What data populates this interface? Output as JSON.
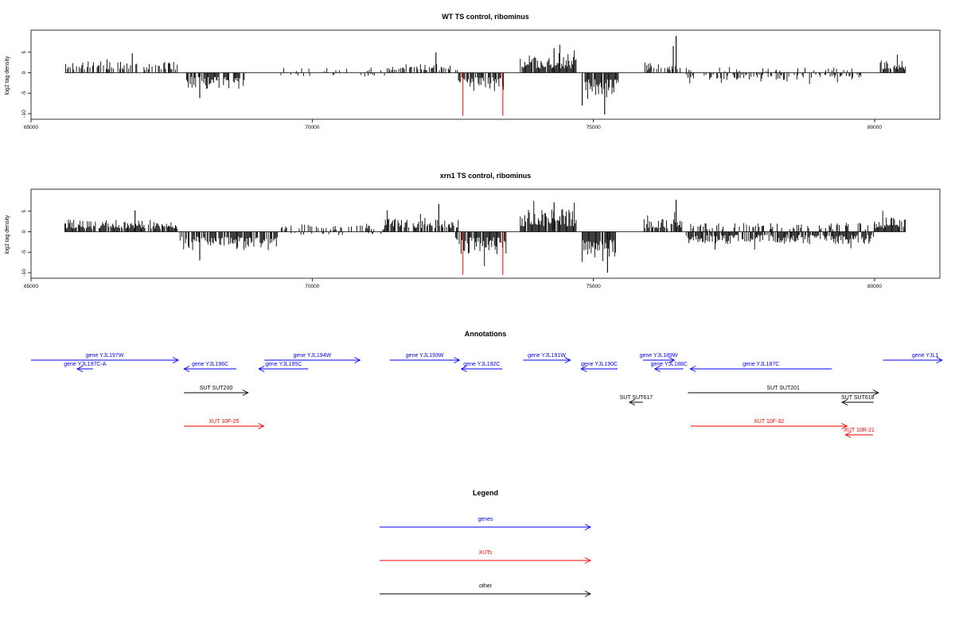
{
  "colors": {
    "genes": "#0000ff",
    "xuts": "#ff0000",
    "other": "#000000",
    "highlight": "#ff0000"
  },
  "chart_data": [
    {
      "type": "bar",
      "title": "WT TS control, ribominus",
      "ylabel": "log2 tag density",
      "xlim": [
        65000,
        81000
      ],
      "ylim": [
        -10.5,
        10
      ],
      "xticks": [
        65000,
        70000,
        75000,
        80000
      ],
      "yticks": [
        -10,
        -5,
        0,
        5
      ],
      "bar_style": "vertical bars from zero",
      "coverage_start": 65600,
      "coverage_end": 80550,
      "segments": [
        {
          "start": 65600,
          "end": 67600,
          "strand": 1,
          "amp": 2.8,
          "density": 0.55
        },
        {
          "start": 67750,
          "end": 68800,
          "strand": -1,
          "amp": 4.0,
          "density": 0.75
        },
        {
          "start": 69300,
          "end": 71300,
          "strand": 1,
          "amp": 1.4,
          "density": 0.12
        },
        {
          "start": 69300,
          "end": 71300,
          "strand": -1,
          "amp": 1.0,
          "density": 0.08
        },
        {
          "start": 71300,
          "end": 72600,
          "strand": 1,
          "amp": 2.2,
          "density": 0.45
        },
        {
          "start": 72600,
          "end": 73400,
          "strand": -1,
          "amp": 4.5,
          "density": 0.75
        },
        {
          "start": 73700,
          "end": 74700,
          "strand": 1,
          "amp": 4.3,
          "density": 0.9
        },
        {
          "start": 74850,
          "end": 75450,
          "strand": -1,
          "amp": 6.5,
          "density": 0.9
        },
        {
          "start": 75900,
          "end": 76600,
          "strand": 1,
          "amp": 2.6,
          "density": 0.55
        },
        {
          "start": 76650,
          "end": 79800,
          "strand": -1,
          "amp": 1.8,
          "density": 0.4
        },
        {
          "start": 76650,
          "end": 79800,
          "strand": 1,
          "amp": 1.4,
          "density": 0.12
        },
        {
          "start": 80100,
          "end": 80550,
          "strand": 1,
          "amp": 3.0,
          "density": 0.8
        }
      ],
      "peaks": [
        {
          "x": 76470,
          "y": 9.0
        },
        {
          "x": 76420,
          "y": 6.5
        },
        {
          "x": 75200,
          "y": -10.2
        },
        {
          "x": 74800,
          "y": -8.0
        },
        {
          "x": 68000,
          "y": -6.2
        },
        {
          "x": 66800,
          "y": 4.7
        },
        {
          "x": 72200,
          "y": 5.0
        },
        {
          "x": 74300,
          "y": 6.0
        }
      ],
      "highlight_bars": [
        {
          "x": 72680,
          "y": -10.5
        },
        {
          "x": 73390,
          "y": -10.5
        }
      ]
    },
    {
      "type": "bar",
      "title": "xrn1 TS control, ribominus",
      "ylabel": "log2 tag density",
      "xlim": [
        65000,
        81000
      ],
      "ylim": [
        -10.5,
        10
      ],
      "xticks": [
        65000,
        70000,
        75000,
        80000
      ],
      "yticks": [
        -10,
        -5,
        0,
        5
      ],
      "bar_style": "vertical bars from zero",
      "coverage_start": 65600,
      "coverage_end": 80550,
      "segments": [
        {
          "start": 65600,
          "end": 67600,
          "strand": 1,
          "amp": 3.0,
          "density": 0.85
        },
        {
          "start": 67650,
          "end": 69400,
          "strand": -1,
          "amp": 4.5,
          "density": 0.8
        },
        {
          "start": 69400,
          "end": 71300,
          "strand": 1,
          "amp": 2.0,
          "density": 0.35
        },
        {
          "start": 69400,
          "end": 71300,
          "strand": -1,
          "amp": 1.0,
          "density": 0.15
        },
        {
          "start": 71300,
          "end": 72600,
          "strand": 1,
          "amp": 3.5,
          "density": 0.8
        },
        {
          "start": 72550,
          "end": 73450,
          "strand": -1,
          "amp": 5.5,
          "density": 0.85
        },
        {
          "start": 73700,
          "end": 74700,
          "strand": 1,
          "amp": 5.5,
          "density": 0.95
        },
        {
          "start": 74800,
          "end": 75400,
          "strand": -1,
          "amp": 7.5,
          "density": 0.95
        },
        {
          "start": 75900,
          "end": 76600,
          "strand": 1,
          "amp": 3.2,
          "density": 0.7
        },
        {
          "start": 76650,
          "end": 80000,
          "strand": -1,
          "amp": 3.0,
          "density": 0.8
        },
        {
          "start": 76650,
          "end": 80000,
          "strand": 1,
          "amp": 2.2,
          "density": 0.3
        },
        {
          "start": 80000,
          "end": 80550,
          "strand": 1,
          "amp": 3.5,
          "density": 0.9
        }
      ],
      "peaks": [
        {
          "x": 76470,
          "y": 7.8
        },
        {
          "x": 75250,
          "y": -10.0
        },
        {
          "x": 74300,
          "y": 7.2
        },
        {
          "x": 72250,
          "y": 6.8
        },
        {
          "x": 68000,
          "y": -7.0
        },
        {
          "x": 66850,
          "y": 5.2
        }
      ],
      "highlight_bars": [
        {
          "x": 72680,
          "y": -10.5
        },
        {
          "x": 73390,
          "y": -10.5
        }
      ]
    }
  ],
  "annotations": {
    "title": "Annotations",
    "items": [
      {
        "label": "gene YJL197W",
        "type": "gene",
        "start": 65000,
        "end": 67620,
        "dir": 1,
        "row": 0
      },
      {
        "label": "gene YJL197C-A",
        "type": "gene",
        "start": 65820,
        "end": 66100,
        "dir": -1,
        "row": 1
      },
      {
        "label": "gene YJL196C",
        "type": "gene",
        "start": 67720,
        "end": 68650,
        "dir": -1,
        "row": 1
      },
      {
        "label": "gene YJL195C",
        "type": "gene",
        "start": 69050,
        "end": 69930,
        "dir": -1,
        "row": 1
      },
      {
        "label": "gene YJL194W",
        "type": "gene",
        "start": 69150,
        "end": 70850,
        "dir": 1,
        "row": 0
      },
      {
        "label": "gene YJL193W",
        "type": "gene",
        "start": 71380,
        "end": 72620,
        "dir": 1,
        "row": 0
      },
      {
        "label": "gene YJL192C",
        "type": "gene",
        "start": 72650,
        "end": 73380,
        "dir": -1,
        "row": 1
      },
      {
        "label": "gene YJL191W",
        "type": "gene",
        "start": 73750,
        "end": 74590,
        "dir": 1,
        "row": 0
      },
      {
        "label": "gene YJL190C",
        "type": "gene",
        "start": 74780,
        "end": 75430,
        "dir": -1,
        "row": 1
      },
      {
        "label": "gene YJL189W",
        "type": "gene",
        "start": 75880,
        "end": 76440,
        "dir": 1,
        "row": 0
      },
      {
        "label": "gene YJL188C",
        "type": "gene",
        "start": 76090,
        "end": 76600,
        "dir": -1,
        "row": 1
      },
      {
        "label": "gene YJL187C",
        "type": "gene",
        "start": 76720,
        "end": 79240,
        "dir": -1,
        "row": 1
      },
      {
        "label": "gene YJL1",
        "type": "gene",
        "start": 80150,
        "end": 81200,
        "dir": 1,
        "row": 0
      },
      {
        "label": "SUT SUT200",
        "type": "other",
        "start": 67720,
        "end": 68860,
        "dir": 1,
        "row": 2
      },
      {
        "label": "SUT SUT617",
        "type": "other",
        "start": 75640,
        "end": 75880,
        "dir": -1,
        "row": 3
      },
      {
        "label": "SUT SUT201",
        "type": "other",
        "start": 76680,
        "end": 80070,
        "dir": 1,
        "row": 2
      },
      {
        "label": "SUT SUT618",
        "type": "other",
        "start": 79420,
        "end": 79980,
        "dir": -1,
        "row": 3
      },
      {
        "label": "XUT 10F-25",
        "type": "xut",
        "start": 67720,
        "end": 69140,
        "dir": 1,
        "row": 4
      },
      {
        "label": "XUT 10F-32",
        "type": "xut",
        "start": 76730,
        "end": 79510,
        "dir": 1,
        "row": 4
      },
      {
        "label": "XUT 10R-21",
        "type": "xut",
        "start": 79480,
        "end": 79970,
        "dir": -1,
        "row": 5
      }
    ]
  },
  "legend": {
    "title": "Legend",
    "items": [
      {
        "label": "genes",
        "type": "gene"
      },
      {
        "label": "XUTs",
        "type": "xut"
      },
      {
        "label": "other",
        "type": "other"
      }
    ]
  }
}
